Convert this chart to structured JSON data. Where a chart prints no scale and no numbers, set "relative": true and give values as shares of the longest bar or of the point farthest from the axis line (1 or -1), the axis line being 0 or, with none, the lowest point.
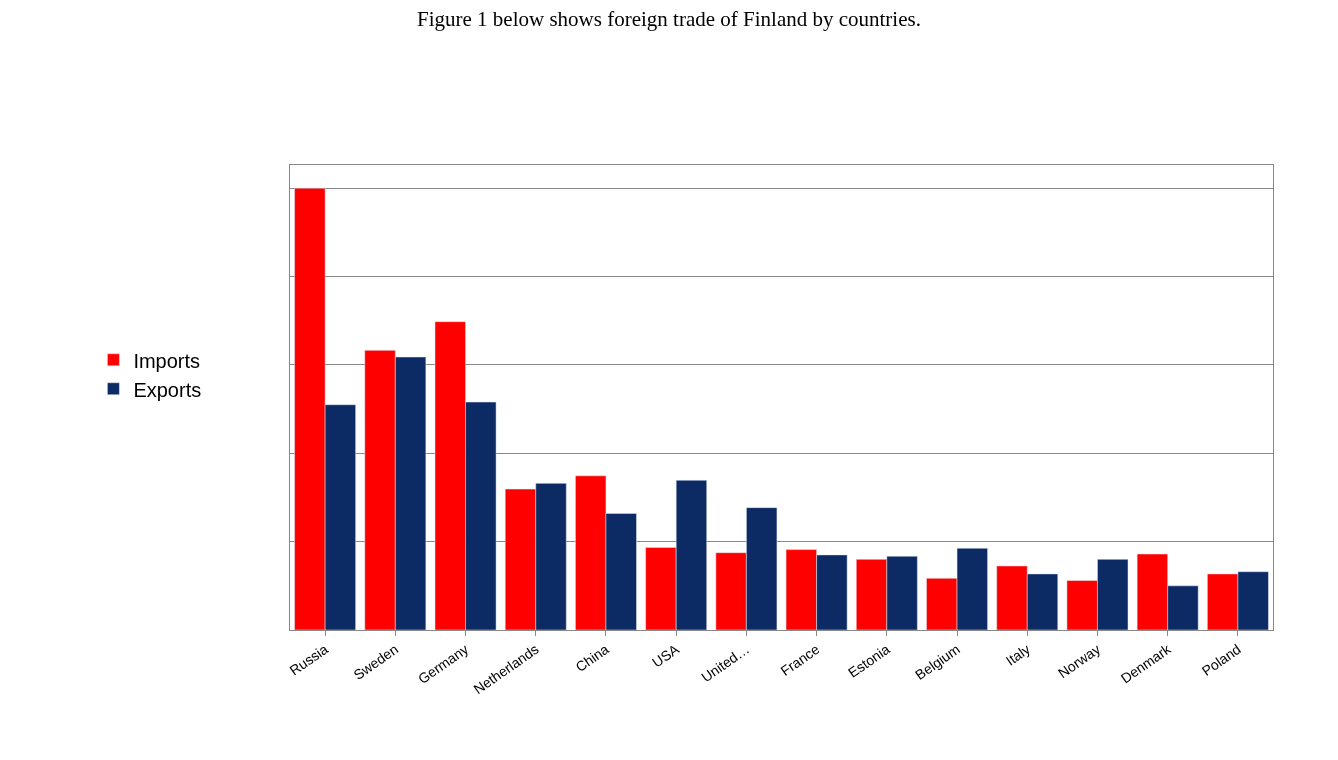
{
  "chart_data": {
    "type": "bar",
    "title": "Figure 1 below shows foreign trade of Finland by countries.",
    "categories": [
      "Russia",
      "Sweden",
      "Germany",
      "Netherlands",
      "China",
      "USA",
      "United…",
      "France",
      "Estonia",
      "Belgium",
      "Italy",
      "Norway",
      "Denmark",
      "Poland"
    ],
    "relative": true,
    "series": [
      {
        "name": "Imports",
        "color": "#ff0000",
        "values": [
          1.0,
          0.633,
          0.698,
          0.319,
          0.349,
          0.187,
          0.175,
          0.182,
          0.16,
          0.117,
          0.145,
          0.112,
          0.172,
          0.127
        ]
      },
      {
        "name": "Exports",
        "color": "#0c2a64",
        "values": [
          0.51,
          0.618,
          0.516,
          0.332,
          0.264,
          0.339,
          0.277,
          0.17,
          0.167,
          0.185,
          0.127,
          0.16,
          0.1,
          0.132
        ]
      }
    ],
    "grid": "y",
    "legend": "left"
  }
}
